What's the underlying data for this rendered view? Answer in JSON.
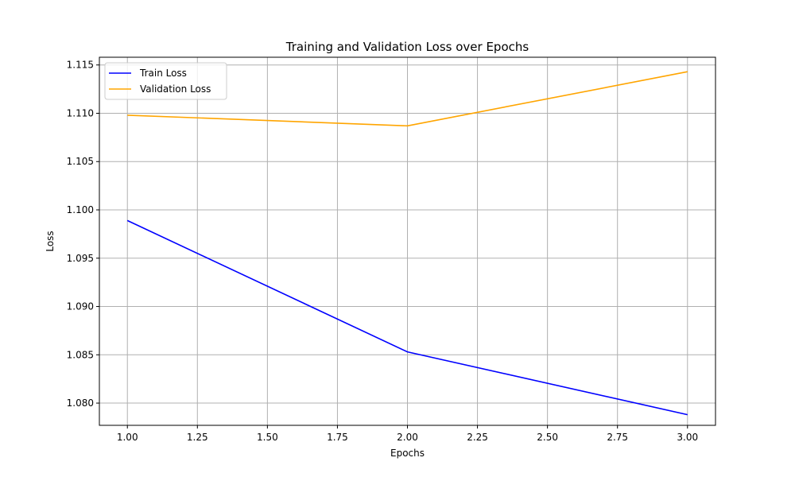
{
  "chart_data": {
    "type": "line",
    "title": "Training and Validation Loss over Epochs",
    "xlabel": "Epochs",
    "ylabel": "Loss",
    "xlim": [
      0.9,
      3.1
    ],
    "ylim": [
      1.0777,
      1.1158
    ],
    "x_ticks": [
      "1.00",
      "1.25",
      "1.50",
      "1.75",
      "2.00",
      "2.25",
      "2.50",
      "2.75",
      "3.00"
    ],
    "y_ticks": [
      "1.080",
      "1.085",
      "1.090",
      "1.095",
      "1.100",
      "1.105",
      "1.110",
      "1.115"
    ],
    "grid": true,
    "legend_position": "upper-left",
    "x": [
      1,
      2,
      3
    ],
    "series": [
      {
        "name": "Train Loss",
        "color": "#0000ff",
        "values": [
          1.0989,
          1.0853,
          1.0788
        ]
      },
      {
        "name": "Validation Loss",
        "color": "#ffa500",
        "values": [
          1.1098,
          1.1087,
          1.1143
        ]
      }
    ]
  }
}
